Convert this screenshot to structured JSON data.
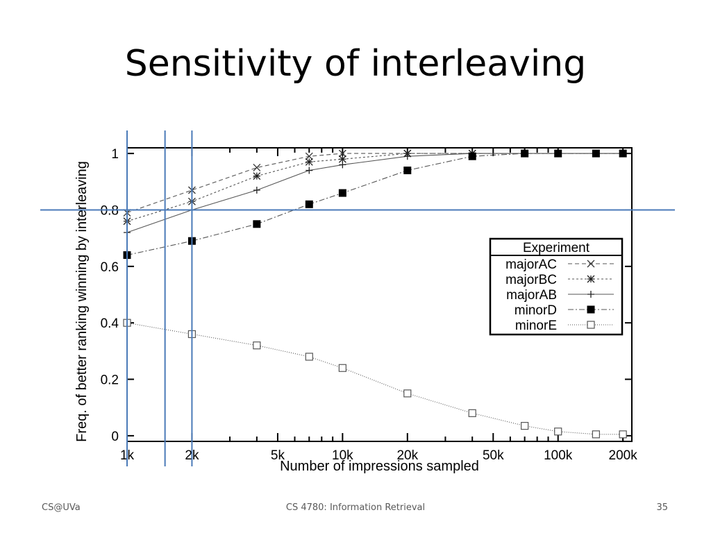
{
  "slide": {
    "title": "Sensitivity of interleaving",
    "footer_left": "CS@UVa",
    "footer_center": "CS 4780: Information Retrieval",
    "footer_right": "35"
  },
  "chart_data": {
    "type": "line",
    "title": "",
    "xlabel": "Number of impressions sampled",
    "ylabel": "Freq. of better ranking winning by interleaving",
    "x_scale": "log",
    "xlim": [
      1000,
      220000
    ],
    "ylim": [
      -0.02,
      1.02
    ],
    "x_ticks": [
      {
        "value": 1000,
        "label": "1k"
      },
      {
        "value": 2000,
        "label": "2k"
      },
      {
        "value": 5000,
        "label": "5k"
      },
      {
        "value": 10000,
        "label": "10k"
      },
      {
        "value": 20000,
        "label": "20k"
      },
      {
        "value": 50000,
        "label": "50k"
      },
      {
        "value": 100000,
        "label": "100k"
      },
      {
        "value": 200000,
        "label": "200k"
      }
    ],
    "y_ticks": [
      {
        "value": 0,
        "label": "0"
      },
      {
        "value": 0.2,
        "label": "0.2"
      },
      {
        "value": 0.4,
        "label": "0.4"
      },
      {
        "value": 0.6,
        "label": "0.6"
      },
      {
        "value": 0.8,
        "label": "0.8"
      },
      {
        "value": 1,
        "label": "1"
      }
    ],
    "legend": {
      "title": "Experiment",
      "placement": "right-middle"
    },
    "grid": false,
    "reference_lines": {
      "horizontal_y": [
        0.8
      ],
      "vertical_x": [
        1000,
        1500,
        2000
      ],
      "color": "#4a7ab8"
    },
    "series": [
      {
        "name": "majorAC",
        "marker": "x",
        "dash": "6,4",
        "points": [
          [
            1000,
            0.79
          ],
          [
            2000,
            0.87
          ],
          [
            4000,
            0.95
          ],
          [
            7000,
            0.99
          ],
          [
            10000,
            1.0
          ],
          [
            20000,
            1.0
          ],
          [
            40000,
            1.0
          ],
          [
            70000,
            1.0
          ],
          [
            100000,
            1.0
          ],
          [
            150000,
            1.0
          ],
          [
            200000,
            1.0
          ]
        ]
      },
      {
        "name": "majorBC",
        "marker": "asterisk",
        "dash": "3,3",
        "points": [
          [
            1000,
            0.76
          ],
          [
            2000,
            0.83
          ],
          [
            4000,
            0.92
          ],
          [
            7000,
            0.97
          ],
          [
            10000,
            0.98
          ],
          [
            20000,
            1.0
          ],
          [
            40000,
            1.0
          ],
          [
            70000,
            1.0
          ],
          [
            100000,
            1.0
          ],
          [
            150000,
            1.0
          ],
          [
            200000,
            1.0
          ]
        ]
      },
      {
        "name": "majorAB",
        "marker": "plus",
        "dash": "",
        "points": [
          [
            1000,
            0.72
          ],
          [
            2000,
            0.8
          ],
          [
            4000,
            0.87
          ],
          [
            7000,
            0.94
          ],
          [
            10000,
            0.96
          ],
          [
            20000,
            0.99
          ],
          [
            40000,
            1.0
          ],
          [
            70000,
            1.0
          ],
          [
            100000,
            1.0
          ],
          [
            150000,
            1.0
          ],
          [
            200000,
            1.0
          ]
        ]
      },
      {
        "name": "minorD",
        "marker": "filled-square",
        "dash": "8,3,2,3",
        "points": [
          [
            1000,
            0.64
          ],
          [
            2000,
            0.69
          ],
          [
            4000,
            0.75
          ],
          [
            7000,
            0.82
          ],
          [
            10000,
            0.86
          ],
          [
            20000,
            0.94
          ],
          [
            40000,
            0.99
          ],
          [
            70000,
            1.0
          ],
          [
            100000,
            1.0
          ],
          [
            150000,
            1.0
          ],
          [
            200000,
            1.0
          ]
        ]
      },
      {
        "name": "minorE",
        "marker": "open-square",
        "dash": "1,2",
        "points": [
          [
            1000,
            0.4
          ],
          [
            2000,
            0.36
          ],
          [
            4000,
            0.32
          ],
          [
            7000,
            0.28
          ],
          [
            10000,
            0.24
          ],
          [
            20000,
            0.15
          ],
          [
            40000,
            0.08
          ],
          [
            70000,
            0.035
          ],
          [
            100000,
            0.015
          ],
          [
            150000,
            0.005
          ],
          [
            200000,
            0.005
          ]
        ]
      }
    ]
  }
}
